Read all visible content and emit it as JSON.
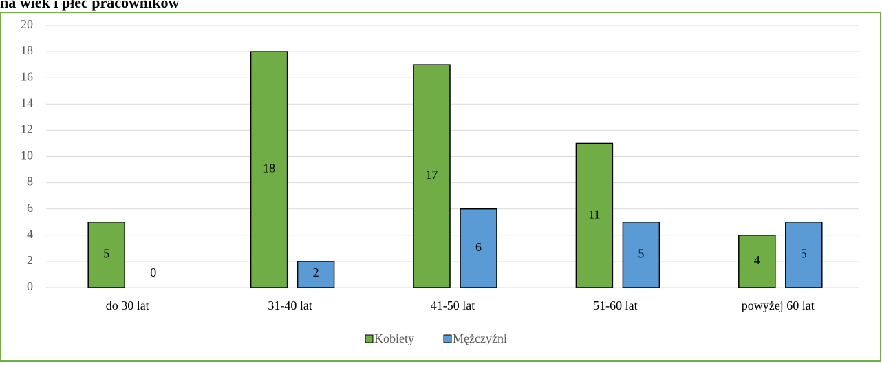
{
  "chart_data": {
    "type": "bar",
    "title": "na wiek i płeć pracowników",
    "categories": [
      "do 30 lat",
      "31-40 lat",
      "41-50 lat",
      "51-60 lat",
      "powyżej 60 lat"
    ],
    "series": [
      {
        "name": "Kobiety",
        "color": "#70ad47",
        "values": [
          5,
          18,
          17,
          11,
          4
        ]
      },
      {
        "name": "Mężczyźni",
        "color": "#5b9bd5",
        "values": [
          0,
          2,
          6,
          5,
          5
        ]
      }
    ],
    "ylim": [
      0,
      20
    ],
    "yticks": [
      0,
      2,
      4,
      6,
      8,
      10,
      12,
      14,
      16,
      18,
      20
    ],
    "grid": true,
    "legend": "bottom"
  }
}
